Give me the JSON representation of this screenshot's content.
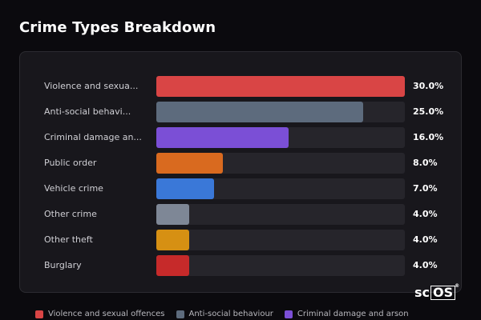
{
  "title": "Crime Types Breakdown",
  "brand": {
    "prefix": "sc",
    "boxed": "OS",
    "mark": "®"
  },
  "chart_data": {
    "type": "bar",
    "orientation": "horizontal",
    "max_value": 30.0,
    "categories": [
      "Violence and sexua...",
      "Anti-social behavi...",
      "Criminal damage an...",
      "Public order",
      "Vehicle crime",
      "Other crime",
      "Other theft",
      "Burglary"
    ],
    "values": [
      30.0,
      25.0,
      16.0,
      8.0,
      7.0,
      4.0,
      4.0,
      4.0
    ],
    "value_labels": [
      "30.0%",
      "25.0%",
      "16.0%",
      "8.0%",
      "7.0%",
      "4.0%",
      "4.0%",
      "4.0%"
    ],
    "colors": [
      "#d94545",
      "#5d6b7d",
      "#7b4fd6",
      "#d96a1f",
      "#3a78d8",
      "#7e8796",
      "#d69013",
      "#c62a2a"
    ],
    "legend": [
      {
        "label": "Violence and sexual offences",
        "color": "#d94545"
      },
      {
        "label": "Anti-social behaviour",
        "color": "#5d6b7d"
      },
      {
        "label": "Criminal damage and arson",
        "color": "#7b4fd6"
      }
    ],
    "legend_position": "bottom"
  }
}
